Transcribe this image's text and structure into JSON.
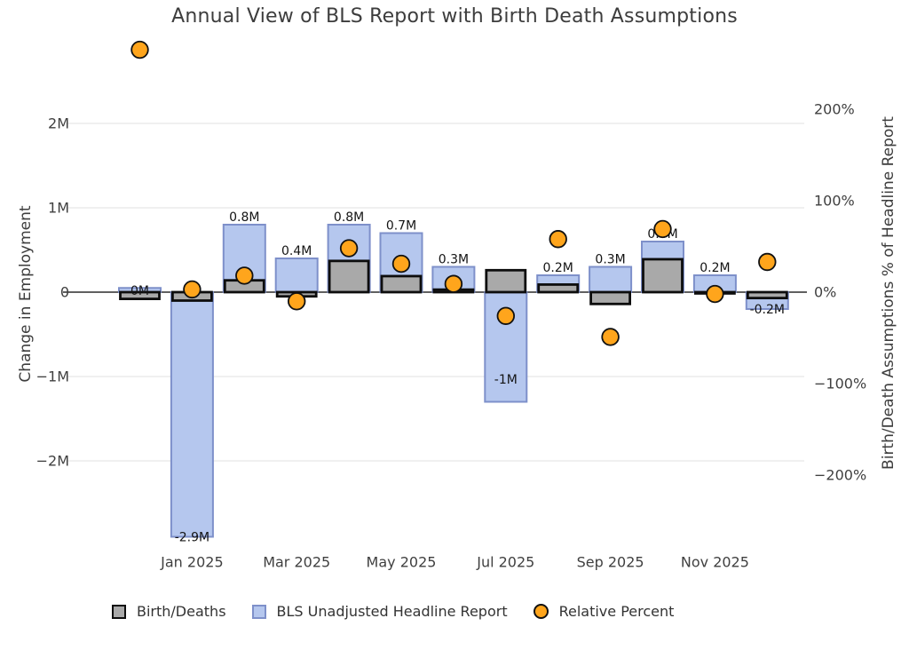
{
  "chart_data": {
    "type": "combo bar + scatter (dual axis)",
    "title": "Annual View of BLS Report with Birth Death Assumptions",
    "left_axis": {
      "label": "Change in Employment",
      "units": "millions",
      "ticks": [
        {
          "label": "2M",
          "value": 2
        },
        {
          "label": "1M",
          "value": 1
        },
        {
          "label": "0",
          "value": 0
        },
        {
          "label": "−1M",
          "value": -1
        },
        {
          "label": "−2M",
          "value": -2
        }
      ]
    },
    "right_axis": {
      "label": "Birth/Death Assumptions % of Headline Report",
      "units": "percent",
      "ticks": [
        {
          "label": "200%",
          "value": 200
        },
        {
          "label": "100%",
          "value": 100
        },
        {
          "label": "0%",
          "value": 0
        },
        {
          "label": "−100%",
          "value": -100
        },
        {
          "label": "−200%",
          "value": -200
        }
      ]
    },
    "grid": "horizontal-only",
    "x_tick_labels": [
      "Jan 2025",
      "Mar 2025",
      "May 2025",
      "Jul 2025",
      "Sep 2025",
      "Nov 2025"
    ],
    "series": [
      {
        "name": "Birth/Deaths",
        "type": "bar",
        "axis": "left",
        "fill": "#a9a9a9",
        "border": "#0d0d0d"
      },
      {
        "name": "BLS Unadjusted Headline Report",
        "type": "bar",
        "axis": "left",
        "fill": "#b5c7ee",
        "border": "#7e90ca"
      },
      {
        "name": "Relative Percent",
        "type": "scatter",
        "axis": "right",
        "fill": "#ffa51c",
        "border": "#111111"
      }
    ],
    "legend": {
      "position": "bottom",
      "items": [
        {
          "label": "Birth/Deaths"
        },
        {
          "label": "BLS Unadjusted Headline Report"
        },
        {
          "label": "Relative Percent"
        }
      ]
    },
    "points": [
      {
        "tick_label": null,
        "headline_m": 0.05,
        "headline_label": "0M",
        "birth_death_m": -0.08,
        "relative_pct": 265,
        "label_at_m": 0.02
      },
      {
        "tick_label": "Jan 2025",
        "headline_m": -2.9,
        "headline_label": "-2.9M",
        "birth_death_m": -0.1,
        "relative_pct": 3
      },
      {
        "tick_label": null,
        "headline_m": 0.8,
        "headline_label": "0.8M",
        "birth_death_m": 0.14,
        "relative_pct": 18
      },
      {
        "tick_label": "Mar 2025",
        "headline_m": 0.4,
        "headline_label": "0.4M",
        "birth_death_m": -0.05,
        "relative_pct": -10
      },
      {
        "tick_label": null,
        "headline_m": 0.8,
        "headline_label": "0.8M",
        "birth_death_m": 0.37,
        "relative_pct": 48
      },
      {
        "tick_label": "May 2025",
        "headline_m": 0.7,
        "headline_label": "0.7M",
        "birth_death_m": 0.19,
        "relative_pct": 31
      },
      {
        "tick_label": null,
        "headline_m": 0.3,
        "headline_label": "0.3M",
        "birth_death_m": 0.03,
        "relative_pct": 9
      },
      {
        "tick_label": "Jul 2025",
        "headline_m": -1.3,
        "headline_label": "-1M",
        "birth_death_m": 0.26,
        "relative_pct": -26,
        "label_at_m": -1.03
      },
      {
        "tick_label": null,
        "headline_m": 0.2,
        "headline_label": "0.2M",
        "birth_death_m": 0.09,
        "relative_pct": 58
      },
      {
        "tick_label": "Sep 2025",
        "headline_m": 0.3,
        "headline_label": "0.3M",
        "birth_death_m": -0.14,
        "relative_pct": -49
      },
      {
        "tick_label": null,
        "headline_m": 0.6,
        "headline_label": "0.6M",
        "birth_death_m": 0.39,
        "relative_pct": 69
      },
      {
        "tick_label": "Nov 2025",
        "headline_m": 0.2,
        "headline_label": "0.2M",
        "birth_death_m": -0.015,
        "relative_pct": -2
      },
      {
        "tick_label": null,
        "headline_m": -0.2,
        "headline_label": "-0.2M",
        "birth_death_m": -0.07,
        "relative_pct": 33
      }
    ]
  }
}
